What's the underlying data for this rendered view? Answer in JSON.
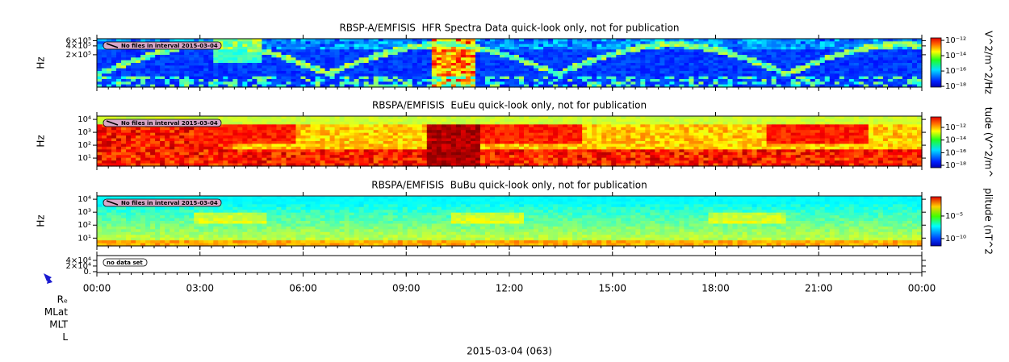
{
  "chart_data": [
    {
      "type": "spectrogram",
      "title": "RBSP-A/EMFISIS  HFR Spectra Data quick-look only, not for publication",
      "ylabel": "Hz",
      "ylog": true,
      "ylim": [
        16000,
        700000
      ],
      "yticks": [
        {
          "value": 200000,
          "label": "2×10⁵"
        },
        {
          "value": 400000,
          "label": "4×10⁵"
        },
        {
          "value": 600000,
          "label": "6×10⁵"
        }
      ],
      "colorbar_label": "V^2/m^2/Hz",
      "zlog": true,
      "zlim": [
        8e-19,
        2.1e-12
      ],
      "zticks": [
        {
          "value": 1e-12,
          "label": "10⁻¹²"
        },
        {
          "value": 1e-14,
          "label": "10⁻¹⁴"
        },
        {
          "value": 1e-16,
          "label": "10⁻¹⁶"
        },
        {
          "value": 1e-18,
          "label": "10⁻¹⁸"
        }
      ],
      "annotation": "No files in interval 2015-03-04"
    },
    {
      "type": "spectrogram",
      "title": "RBSPA/EMFISIS  EuEu quick-look only, not for publication",
      "ylabel": "Hz",
      "ylog": true,
      "ylim": [
        2.4,
        18000
      ],
      "yticks": [
        {
          "value": 10,
          "label": "10¹"
        },
        {
          "value": 100,
          "label": "10²"
        },
        {
          "value": 1000,
          "label": "10³"
        },
        {
          "value": 10000,
          "label": "10⁴"
        }
      ],
      "colorbar_label": "tude (V^2/m^",
      "zlog": true,
      "zlim": [
        4.2e-19,
        4.6e-11
      ],
      "zticks": [
        {
          "value": 1e-12,
          "label": "10⁻¹²"
        },
        {
          "value": 1e-14,
          "label": "10⁻¹⁴"
        },
        {
          "value": 1e-16,
          "label": "10⁻¹⁶"
        },
        {
          "value": 1e-18,
          "label": "10⁻¹⁸"
        }
      ],
      "annotation": "No files in interval 2015-03-04"
    },
    {
      "type": "spectrogram",
      "title": "RBSPA/EMFISIS  BuBu quick-look only, not for publication",
      "ylabel": "Hz",
      "ylog": true,
      "ylim": [
        2.5,
        18000
      ],
      "yticks": [
        {
          "value": 10,
          "label": "10¹"
        },
        {
          "value": 100,
          "label": "10²"
        },
        {
          "value": 1000,
          "label": "10³"
        },
        {
          "value": 10000,
          "label": "10⁴"
        }
      ],
      "colorbar_label": "plitude (nT^2",
      "zlog": true,
      "zlim": [
        2.4e-12,
        0.19
      ],
      "zticks": [
        {
          "value": 1e-05,
          "label": "10⁻⁵"
        },
        {
          "value": 1e-10,
          "label": "10⁻¹⁰"
        }
      ],
      "annotation": "No files in interval 2015-03-04"
    },
    {
      "type": "empty",
      "ylim": [
        -3000,
        57000
      ],
      "yticks": [
        {
          "value": 0,
          "label": "0."
        },
        {
          "value": 20000,
          "label": "2×10⁴"
        },
        {
          "value": 40000,
          "label": "4×10⁴"
        }
      ],
      "annotation": "no data set",
      "xlim": [
        0,
        24
      ],
      "xticks": [
        {
          "value": 0,
          "label": "00:00"
        },
        {
          "value": 3,
          "label": "03:00"
        },
        {
          "value": 6,
          "label": "06:00"
        },
        {
          "value": 9,
          "label": "09:00"
        },
        {
          "value": 12,
          "label": "12:00"
        },
        {
          "value": 15,
          "label": "15:00"
        },
        {
          "value": 18,
          "label": "18:00"
        },
        {
          "value": 21,
          "label": "21:00"
        },
        {
          "value": 24,
          "label": "00:00"
        }
      ],
      "xlabel": "2015-03-04 (063)",
      "ephemeris_labels": [
        "Rₑ",
        "MLat",
        "MLT",
        "L"
      ]
    }
  ]
}
